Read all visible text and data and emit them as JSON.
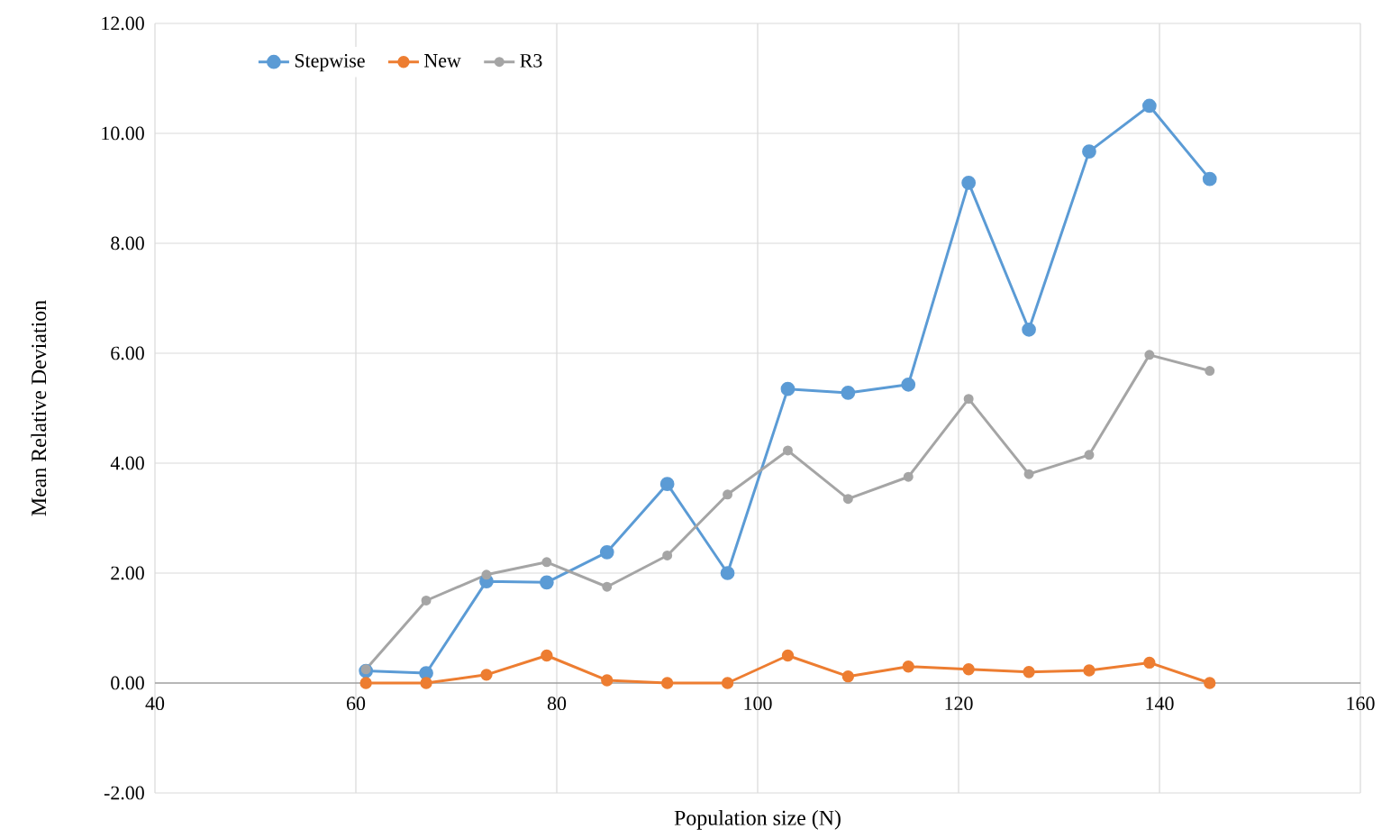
{
  "chart_data": {
    "type": "line",
    "xlabel": "Population size (N)",
    "ylabel": "Mean Relative Deviation",
    "x": [
      61,
      67,
      73,
      79,
      85,
      91,
      97,
      103,
      109,
      115,
      121,
      127,
      133,
      139,
      145
    ],
    "series": [
      {
        "name": "Stepwise",
        "color": "#5b9bd5",
        "values": [
          0.22,
          0.18,
          1.85,
          1.83,
          2.38,
          3.62,
          2.0,
          5.35,
          5.28,
          5.43,
          9.1,
          6.43,
          9.67,
          10.5,
          9.17
        ]
      },
      {
        "name": "New",
        "color": "#ed7d31",
        "values": [
          0,
          0,
          0.15,
          0.5,
          0.05,
          0,
          0,
          0.5,
          0.12,
          0.3,
          0.25,
          0.2,
          0.23,
          0.37,
          0
        ]
      },
      {
        "name": "R3",
        "color": "#a5a5a5",
        "values": [
          0.25,
          1.5,
          1.97,
          2.2,
          1.75,
          2.32,
          3.43,
          4.23,
          3.35,
          3.75,
          5.17,
          3.8,
          4.15,
          5.97,
          5.68
        ]
      }
    ],
    "xlim": [
      40,
      160
    ],
    "ylim": [
      -2,
      12
    ],
    "xticks": [
      40,
      60,
      80,
      100,
      120,
      140,
      160
    ],
    "yticks": [
      {
        "value": -2,
        "label": "-2.00"
      },
      {
        "value": 0,
        "label": "0.00"
      },
      {
        "value": 2,
        "label": "2.00"
      },
      {
        "value": 4,
        "label": "4.00"
      },
      {
        "value": 6,
        "label": "6.00"
      },
      {
        "value": 8,
        "label": "8.00"
      },
      {
        "value": 10,
        "label": "10.00"
      },
      {
        "value": 12,
        "label": "12.00"
      }
    ],
    "grid": true,
    "legend": "top left",
    "marker": "circle",
    "line_style": "solid"
  }
}
